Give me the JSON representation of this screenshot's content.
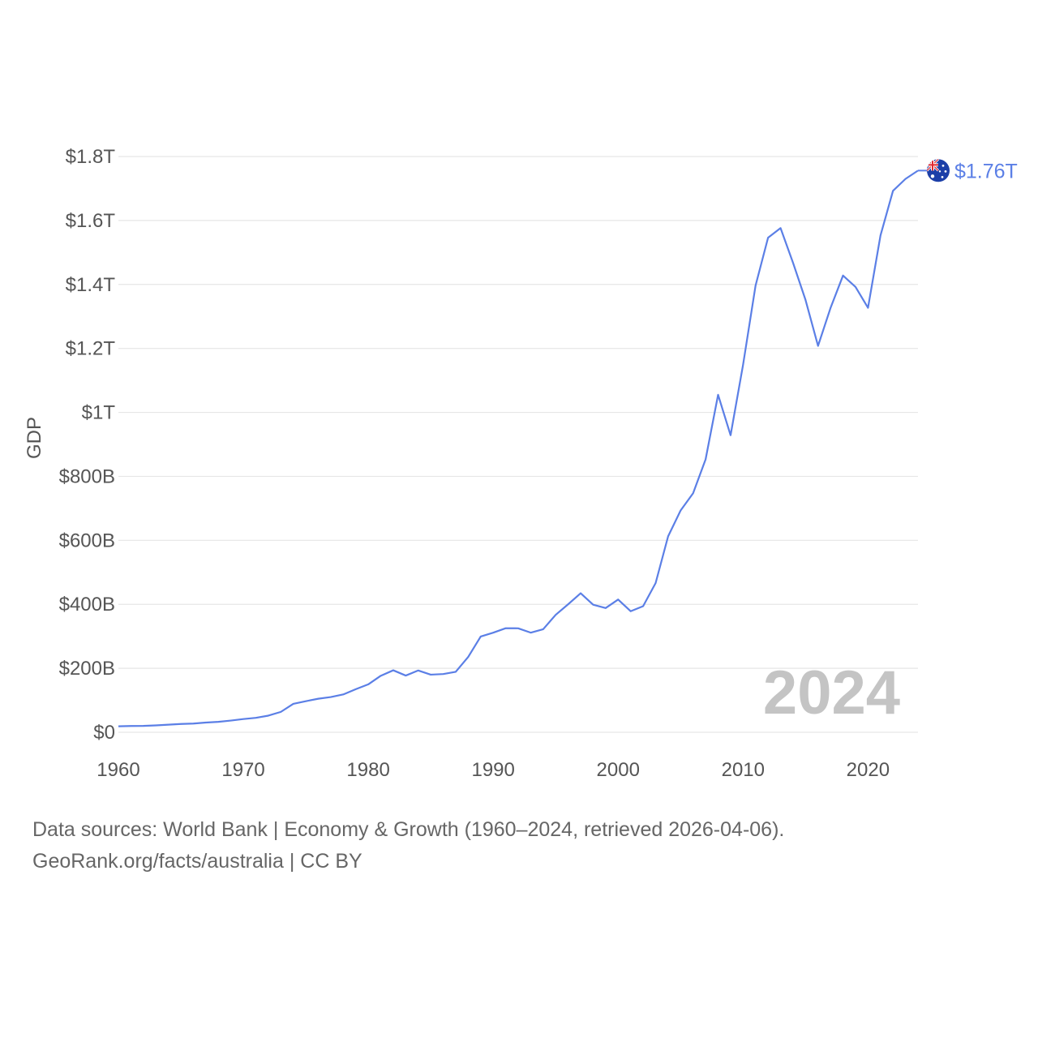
{
  "chart_data": {
    "type": "line",
    "title": "",
    "xlabel": "",
    "ylabel": "GDP",
    "xlim": [
      1960,
      2024
    ],
    "ylim": [
      0,
      1800000000000
    ],
    "x_ticks": [
      1960,
      1970,
      1980,
      1990,
      2000,
      2010,
      2020
    ],
    "y_ticks": [
      {
        "value": 0,
        "label": "$0"
      },
      {
        "value": 200000000000,
        "label": "$200B"
      },
      {
        "value": 400000000000,
        "label": "$400B"
      },
      {
        "value": 600000000000,
        "label": "$600B"
      },
      {
        "value": 800000000000,
        "label": "$800B"
      },
      {
        "value": 1000000000000,
        "label": "$1T"
      },
      {
        "value": 1200000000000,
        "label": "$1.2T"
      },
      {
        "value": 1400000000000,
        "label": "$1.4T"
      },
      {
        "value": 1600000000000,
        "label": "$1.6T"
      },
      {
        "value": 1800000000000,
        "label": "$1.8T"
      }
    ],
    "grid": true,
    "series": [
      {
        "name": "Australia",
        "color": "#5b7fe6",
        "end_label": "$1.76T",
        "flag": "australia-flag",
        "x": [
          1960,
          1961,
          1962,
          1963,
          1964,
          1965,
          1966,
          1967,
          1968,
          1969,
          1970,
          1971,
          1972,
          1973,
          1974,
          1975,
          1976,
          1977,
          1978,
          1979,
          1980,
          1981,
          1982,
          1983,
          1984,
          1985,
          1986,
          1987,
          1988,
          1989,
          1990,
          1991,
          1992,
          1993,
          1994,
          1995,
          1996,
          1997,
          1998,
          1999,
          2000,
          2001,
          2002,
          2003,
          2004,
          2005,
          2006,
          2007,
          2008,
          2009,
          2010,
          2011,
          2012,
          2013,
          2014,
          2015,
          2016,
          2017,
          2018,
          2019,
          2020,
          2021,
          2022,
          2023,
          2024
        ],
        "values": [
          18.6,
          19.7,
          19.9,
          21.5,
          23.8,
          25.9,
          27.3,
          30.4,
          32.7,
          36.6,
          41.3,
          45.1,
          52.0,
          63.7,
          88.8,
          97.2,
          104.9,
          110.1,
          118.3,
          134.6,
          149.8,
          176.6,
          193.8,
          177.3,
          193.2,
          180.2,
          182.0,
          189.1,
          235.7,
          299.3,
          311.4,
          325.3,
          325.0,
          311.5,
          322.2,
          367.2,
          400.3,
          434.6,
          398.9,
          388.3,
          415.0,
          378.4,
          394.3,
          466.5,
          612.5,
          693.3,
          747.2,
          853.1,
          1055.0,
          928.8,
          1148.8,
          1396.6,
          1546.2,
          1576.2,
          1467.5,
          1351.5,
          1208.0,
          1326.5,
          1427.8,
          1392.2,
          1326.9,
          1553.3,
          1692.7,
          1730.0,
          1756.0
        ],
        "value_unit": "billion USD"
      }
    ],
    "year_label": "2024"
  },
  "footer": {
    "line1": "Data sources: World Bank | Economy & Growth (1960–2024, retrieved 2026-04-06).",
    "line2": "GeoRank.org/facts/australia | CC BY"
  }
}
